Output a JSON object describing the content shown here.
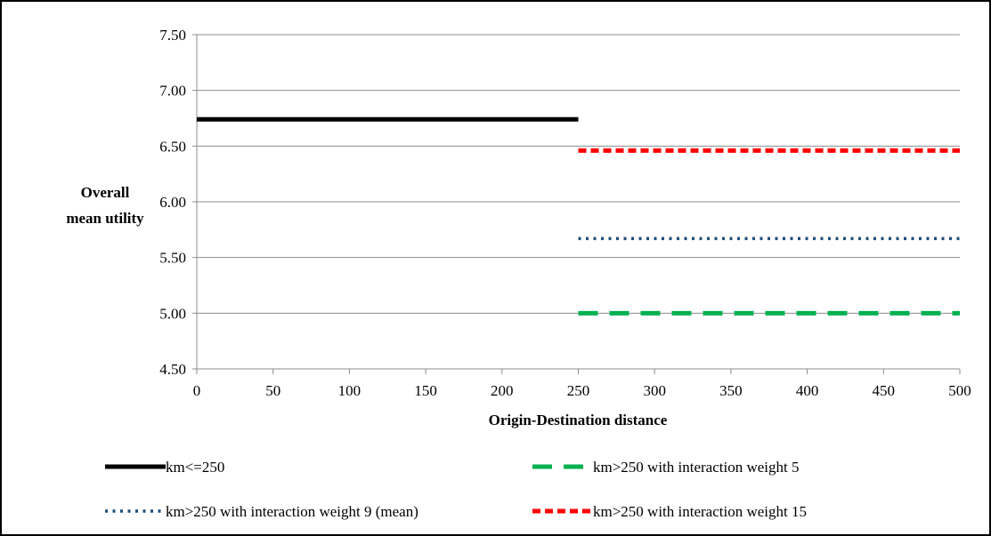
{
  "chart_data": {
    "type": "line",
    "title": "",
    "xlabel": "Origin-Destination distance",
    "ylabel": "Overall mean utility",
    "xlim": [
      0,
      500
    ],
    "ylim": [
      4.5,
      7.5
    ],
    "x_ticks": [
      "0",
      "50",
      "100",
      "150",
      "200",
      "250",
      "300",
      "350",
      "400",
      "450",
      "500"
    ],
    "y_ticks": [
      "7.50",
      "7.00",
      "6.50",
      "6.00",
      "5.50",
      "5.00",
      "4.50"
    ],
    "grid": "horizontal",
    "legend_position": "bottom",
    "series": [
      {
        "name": "km<=250",
        "x": [
          0,
          250
        ],
        "y": [
          6.74,
          6.74
        ],
        "color": "#000000",
        "style": "solid"
      },
      {
        "name": "km>250 with interaction weight 5",
        "x": [
          250,
          500
        ],
        "y": [
          5.0,
          5.0
        ],
        "color": "#00b050",
        "style": "long-dash"
      },
      {
        "name": "km>250 with interaction weight 9 (mean)",
        "x": [
          250,
          500
        ],
        "y": [
          5.67,
          5.67
        ],
        "color": "#1f4e79",
        "style": "dotted"
      },
      {
        "name": "km>250 with interaction weight 15",
        "x": [
          250,
          500
        ],
        "y": [
          6.46,
          6.46
        ],
        "color": "#ff0000",
        "style": "dashed"
      }
    ]
  }
}
